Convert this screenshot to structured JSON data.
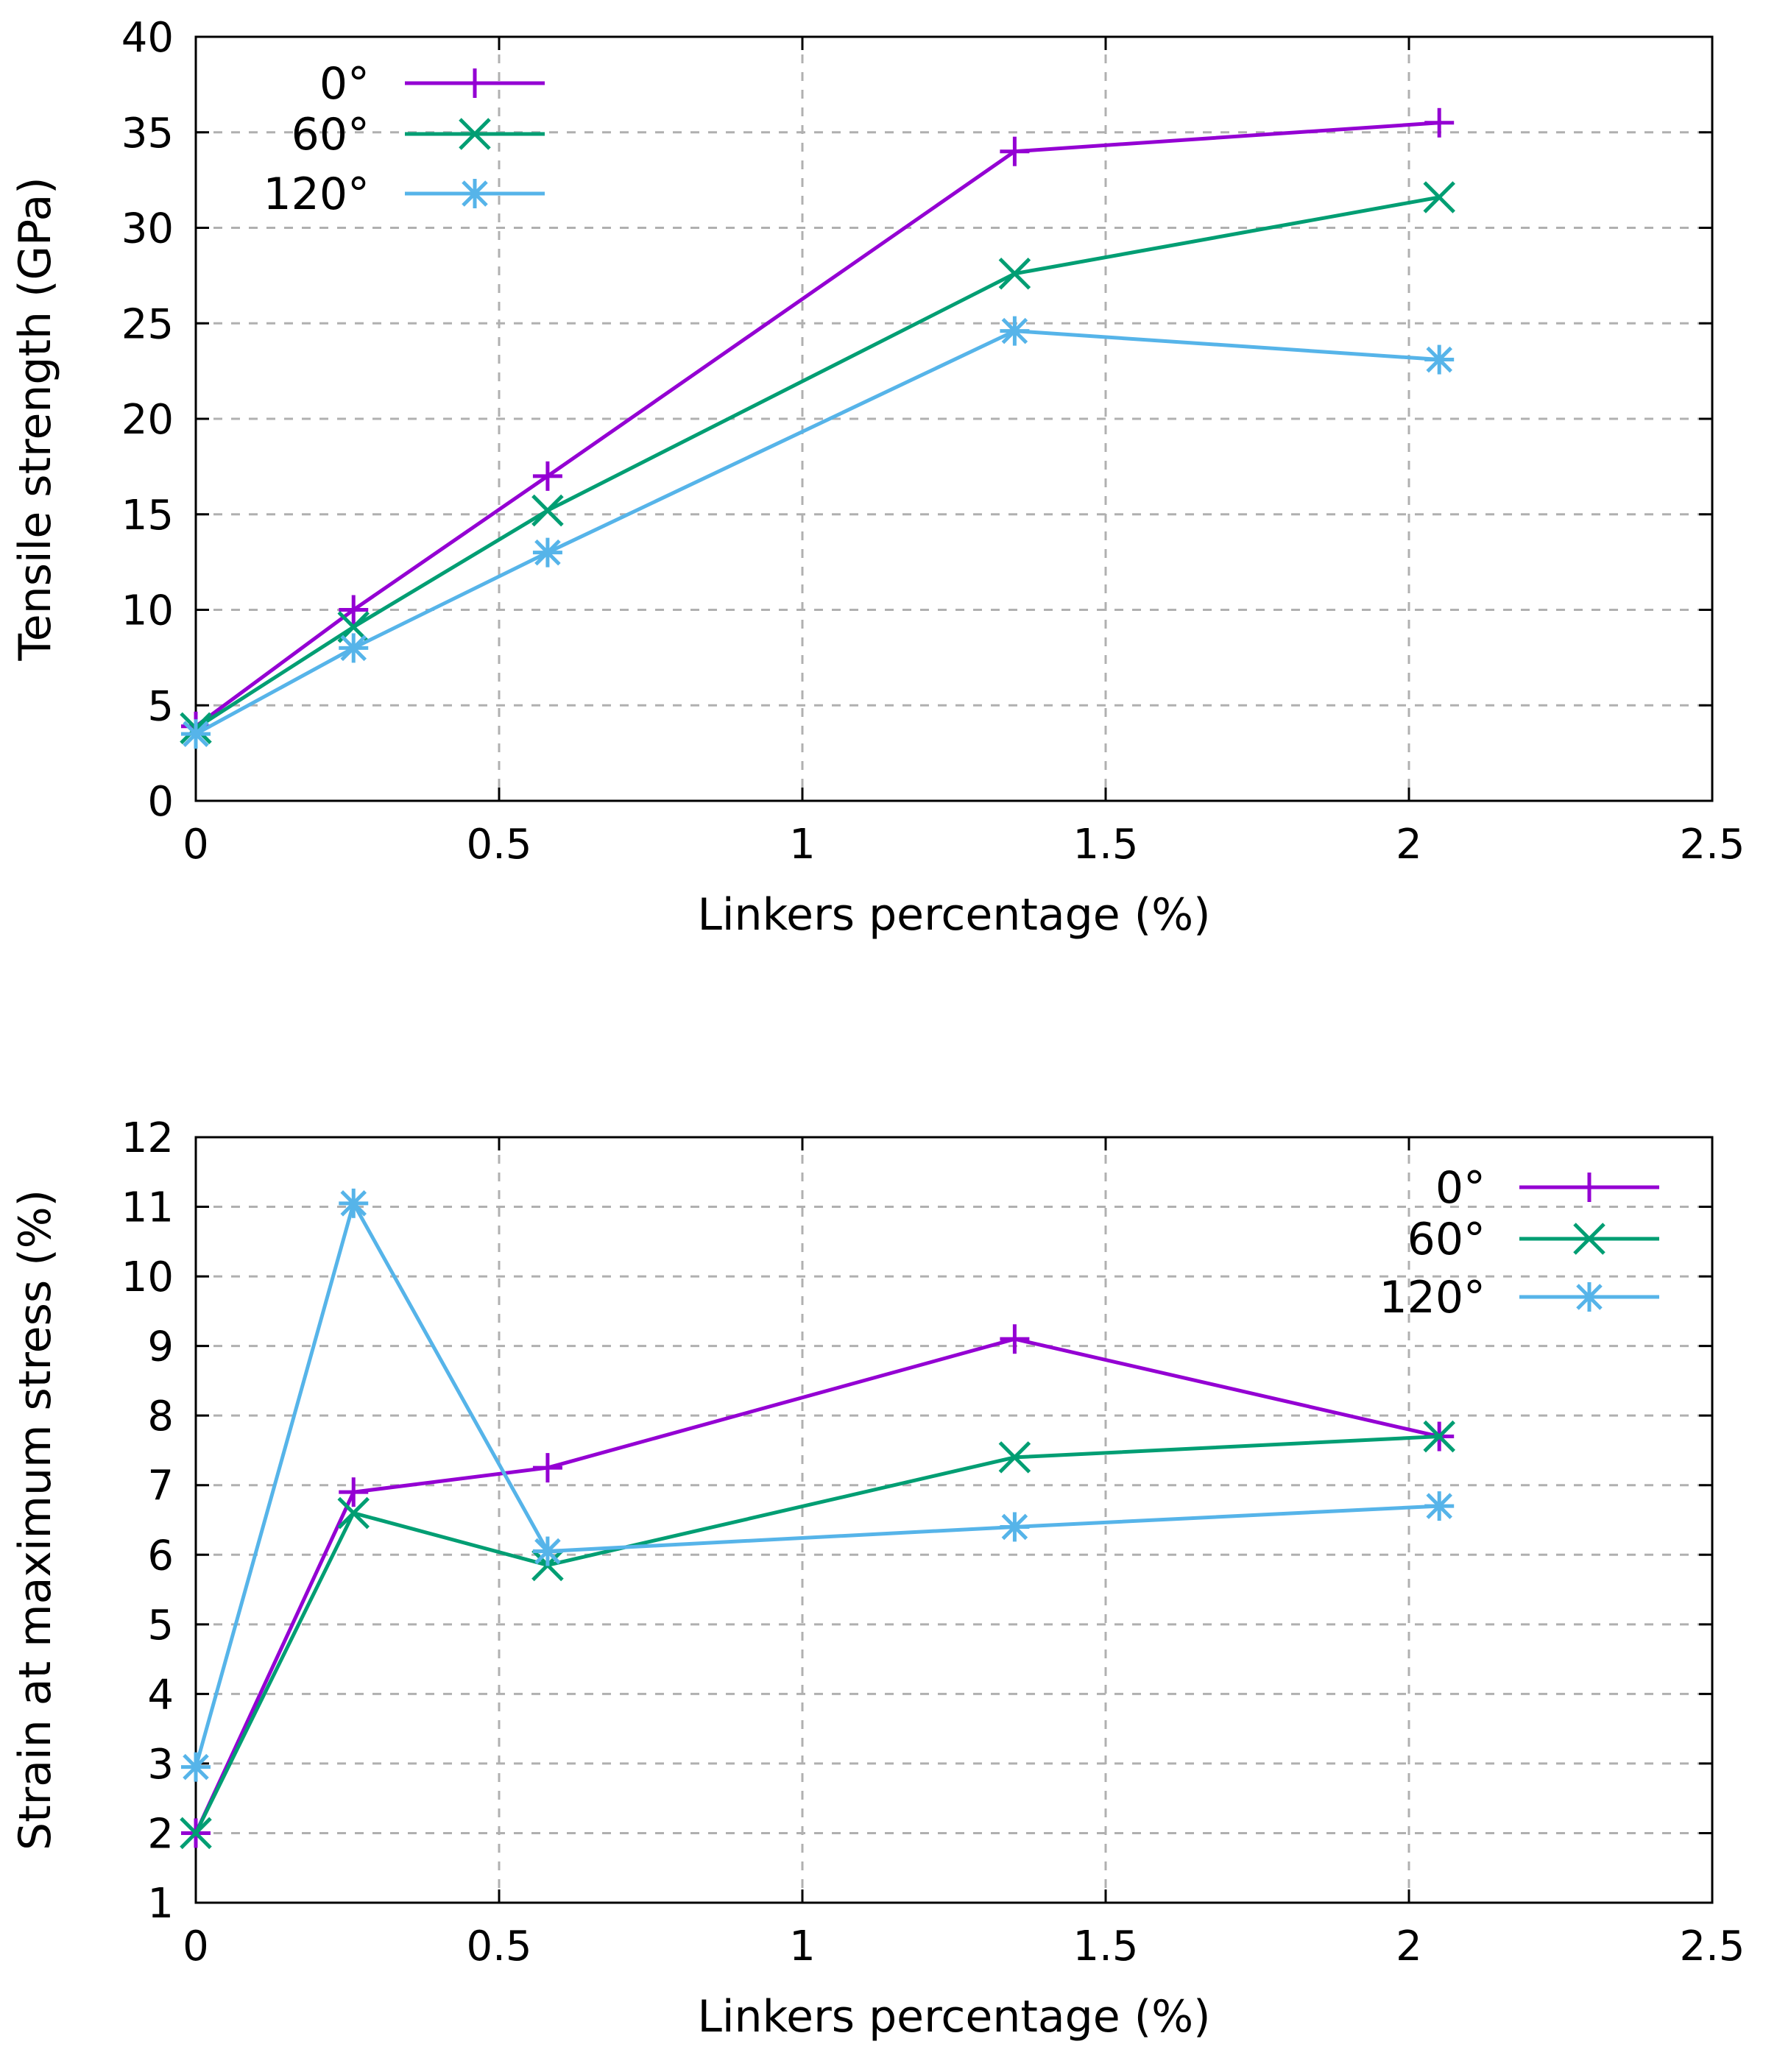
{
  "chart_data": [
    {
      "type": "line",
      "title": "",
      "xlabel": "Linkers percentage (%)",
      "ylabel": "Tensile strength (GPa)",
      "xlim": [
        0,
        2.5
      ],
      "ylim": [
        0,
        40
      ],
      "xticks": [
        0,
        0.5,
        1,
        1.5,
        2,
        2.5
      ],
      "xtick_labels": [
        "0",
        "0.5",
        "1",
        "1.5",
        "2",
        "2.5"
      ],
      "yticks": [
        0,
        5,
        10,
        15,
        20,
        25,
        30,
        35,
        40
      ],
      "ytick_labels": [
        "0",
        "5",
        "10",
        "15",
        "20",
        "25",
        "30",
        "35",
        "40"
      ],
      "grid": true,
      "legend_position": "top-left",
      "x": [
        0,
        0.26,
        0.58,
        1.35,
        2.05
      ],
      "series": [
        {
          "name": "0°",
          "color": "#9400d3",
          "marker": "plus",
          "values": [
            3.9,
            10.0,
            17.0,
            34.0,
            35.5
          ]
        },
        {
          "name": "60°",
          "color": "#009e73",
          "marker": "cross",
          "values": [
            3.8,
            9.1,
            15.2,
            27.6,
            31.6
          ]
        },
        {
          "name": "120°",
          "color": "#56b4e9",
          "marker": "star",
          "values": [
            3.5,
            8.0,
            13.0,
            24.6,
            23.1
          ]
        }
      ]
    },
    {
      "type": "line",
      "title": "",
      "xlabel": "Linkers percentage (%)",
      "ylabel": "Strain at maximum stress (%)",
      "xlim": [
        0,
        2.5
      ],
      "ylim": [
        1,
        12
      ],
      "xticks": [
        0,
        0.5,
        1,
        1.5,
        2,
        2.5
      ],
      "xtick_labels": [
        "0",
        "0.5",
        "1",
        "1.5",
        "2",
        "2.5"
      ],
      "yticks": [
        1,
        2,
        3,
        4,
        5,
        6,
        7,
        8,
        9,
        10,
        11,
        12
      ],
      "ytick_labels": [
        "1",
        "2",
        "3",
        "4",
        "5",
        "6",
        "7",
        "8",
        "9",
        "10",
        "11",
        "12"
      ],
      "grid": true,
      "legend_position": "top-right",
      "x": [
        0,
        0.26,
        0.58,
        1.35,
        2.05
      ],
      "series": [
        {
          "name": "0°",
          "color": "#9400d3",
          "marker": "plus",
          "values": [
            2.0,
            6.9,
            7.25,
            9.1,
            7.7
          ]
        },
        {
          "name": "60°",
          "color": "#009e73",
          "marker": "cross",
          "values": [
            2.0,
            6.6,
            5.85,
            7.4,
            7.7
          ]
        },
        {
          "name": "120°",
          "color": "#56b4e9",
          "marker": "star",
          "values": [
            2.95,
            11.05,
            6.05,
            6.4,
            6.7
          ]
        }
      ]
    }
  ]
}
